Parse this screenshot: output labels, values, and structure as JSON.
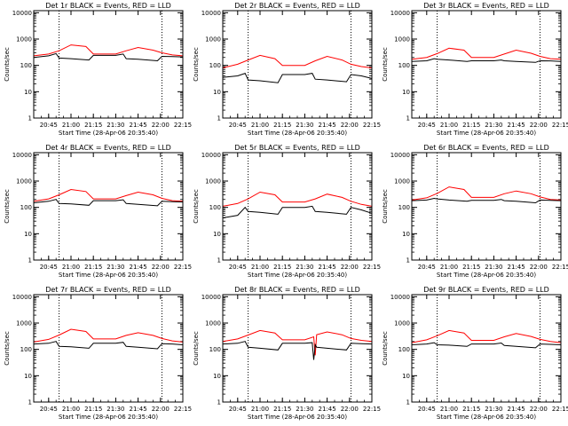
{
  "figure": {
    "colors": {
      "events": "#000000",
      "lld": "#ff0000",
      "axes": "#000000",
      "background": "#ffffff"
    },
    "panels_layout": "3x3 grid"
  },
  "chart_data": [
    {
      "type": "line",
      "title": "Det 1r BLACK = Events, RED = LLD",
      "ylabel": "Counts/sec",
      "xlabel": "Start Time (28-Apr-06 20:35:40)",
      "y_scale": "log",
      "ylim": [
        1,
        12000
      ],
      "xlim": [
        "20:35",
        "22:15"
      ],
      "x_ticks": [
        "20:45",
        "21:00",
        "21:15",
        "21:30",
        "21:45",
        "22:00",
        "22:15"
      ],
      "y_ticks": [
        "1",
        "10",
        "100",
        "1000",
        "10000"
      ],
      "dotted_verticals": [
        "20:52",
        "22:01"
      ],
      "series": [
        {
          "name": "RED = LLD",
          "color": "#ff0000",
          "x": [
            "20:35",
            "20:45",
            "20:52",
            "21:00",
            "21:10",
            "21:15",
            "21:30",
            "21:37",
            "21:45",
            "21:55",
            "22:01",
            "22:08",
            "22:15"
          ],
          "y": [
            230,
            270,
            360,
            600,
            520,
            270,
            270,
            360,
            480,
            380,
            300,
            250,
            230
          ]
        },
        {
          "name": "BLACK = Events",
          "color": "#000000",
          "x": [
            "20:35",
            "20:45",
            "20:50",
            "20:52",
            "21:00",
            "21:12",
            "21:15",
            "21:30",
            "21:35",
            "21:37",
            "21:45",
            "21:58",
            "22:01",
            "22:08",
            "22:15"
          ],
          "y": [
            200,
            230,
            280,
            190,
            180,
            160,
            240,
            240,
            270,
            180,
            170,
            150,
            220,
            215,
            210
          ]
        }
      ]
    },
    {
      "type": "line",
      "title": "Det 2r BLACK = Events, RED = LLD",
      "ylabel": "Counts/sec",
      "xlabel": "Start Time (28-Apr-06 20:35:40)",
      "y_scale": "log",
      "ylim": [
        1,
        12000
      ],
      "xlim": [
        "20:35",
        "22:15"
      ],
      "x_ticks": [
        "20:45",
        "21:00",
        "21:15",
        "21:30",
        "21:45",
        "22:00",
        "22:15"
      ],
      "y_ticks": [
        "1",
        "10",
        "100",
        "1000",
        "10000"
      ],
      "dotted_verticals": [
        "20:52",
        "22:01"
      ],
      "series": [
        {
          "name": "RED = LLD",
          "color": "#ff0000",
          "x": [
            "20:35",
            "20:45",
            "20:52",
            "21:00",
            "21:10",
            "21:15",
            "21:30",
            "21:37",
            "21:45",
            "21:55",
            "22:01",
            "22:08",
            "22:15"
          ],
          "y": [
            80,
            110,
            160,
            240,
            180,
            100,
            100,
            150,
            220,
            160,
            110,
            90,
            80
          ]
        },
        {
          "name": "BLACK = Events",
          "color": "#000000",
          "x": [
            "20:35",
            "20:45",
            "20:50",
            "20:52",
            "21:00",
            "21:12",
            "21:15",
            "21:30",
            "21:35",
            "21:37",
            "21:45",
            "21:58",
            "22:01",
            "22:08",
            "22:15"
          ],
          "y": [
            35,
            40,
            50,
            28,
            26,
            22,
            45,
            45,
            50,
            30,
            28,
            24,
            45,
            40,
            32
          ]
        }
      ]
    },
    {
      "type": "line",
      "title": "Det 3r BLACK = Events, RED = LLD",
      "ylabel": "Counts/sec",
      "xlabel": "Start Time (28-Apr-06 20:35:40)",
      "y_scale": "log",
      "ylim": [
        1,
        12000
      ],
      "xlim": [
        "20:35",
        "22:15"
      ],
      "x_ticks": [
        "20:45",
        "21:00",
        "21:15",
        "21:30",
        "21:45",
        "22:00",
        "22:15"
      ],
      "y_ticks": [
        "1",
        "10",
        "100",
        "1000",
        "10000"
      ],
      "dotted_verticals": [
        "20:52",
        "22:01"
      ],
      "series": [
        {
          "name": "RED = LLD",
          "color": "#ff0000",
          "x": [
            "20:35",
            "20:45",
            "20:52",
            "21:00",
            "21:10",
            "21:15",
            "21:30",
            "21:37",
            "21:45",
            "21:55",
            "22:01",
            "22:08",
            "22:15"
          ],
          "y": [
            170,
            200,
            280,
            450,
            380,
            200,
            200,
            270,
            380,
            290,
            220,
            180,
            170
          ]
        },
        {
          "name": "BLACK = Events",
          "color": "#000000",
          "x": [
            "20:35",
            "20:45",
            "20:50",
            "20:52",
            "21:00",
            "21:12",
            "21:15",
            "21:30",
            "21:35",
            "21:37",
            "21:45",
            "21:58",
            "22:01",
            "22:08",
            "22:15"
          ],
          "y": [
            140,
            150,
            180,
            170,
            160,
            140,
            150,
            150,
            160,
            150,
            140,
            130,
            150,
            148,
            140
          ]
        }
      ]
    },
    {
      "type": "line",
      "title": "Det 4r BLACK = Events, RED = LLD",
      "ylabel": "Counts/sec",
      "xlabel": "Start Time (28-Apr-06 20:35:40)",
      "y_scale": "log",
      "ylim": [
        1,
        12000
      ],
      "xlim": [
        "20:35",
        "22:15"
      ],
      "x_ticks": [
        "20:45",
        "21:00",
        "21:15",
        "21:30",
        "21:45",
        "22:00",
        "22:15"
      ],
      "y_ticks": [
        "1",
        "10",
        "100",
        "1000",
        "10000"
      ],
      "dotted_verticals": [
        "20:52",
        "22:01"
      ],
      "series": [
        {
          "name": "RED = LLD",
          "color": "#ff0000",
          "x": [
            "20:35",
            "20:45",
            "20:52",
            "21:00",
            "21:10",
            "21:15",
            "21:30",
            "21:37",
            "21:45",
            "21:55",
            "22:01",
            "22:08",
            "22:15"
          ],
          "y": [
            170,
            210,
            300,
            480,
            400,
            210,
            210,
            280,
            380,
            300,
            220,
            180,
            170
          ]
        },
        {
          "name": "BLACK = Events",
          "color": "#000000",
          "x": [
            "20:35",
            "20:45",
            "20:50",
            "20:52",
            "21:00",
            "21:12",
            "21:15",
            "21:30",
            "21:35",
            "21:37",
            "21:45",
            "21:58",
            "22:01",
            "22:08",
            "22:15"
          ],
          "y": [
            150,
            170,
            200,
            140,
            135,
            120,
            180,
            180,
            195,
            140,
            130,
            115,
            170,
            165,
            160
          ]
        }
      ]
    },
    {
      "type": "line",
      "title": "Det 5r BLACK = Events, RED = LLD",
      "ylabel": "Counts/sec",
      "xlabel": "Start Time (28-Apr-06 20:35:40)",
      "y_scale": "log",
      "ylim": [
        1,
        12000
      ],
      "xlim": [
        "20:35",
        "22:15"
      ],
      "x_ticks": [
        "20:45",
        "21:00",
        "21:15",
        "21:30",
        "21:45",
        "22:00",
        "22:15"
      ],
      "y_ticks": [
        "1",
        "10",
        "100",
        "1000",
        "10000"
      ],
      "dotted_verticals": [
        "20:52",
        "22:01"
      ],
      "series": [
        {
          "name": "RED = LLD",
          "color": "#ff0000",
          "x": [
            "20:35",
            "20:45",
            "20:52",
            "21:00",
            "21:10",
            "21:15",
            "21:30",
            "21:37",
            "21:45",
            "21:55",
            "22:01",
            "22:08",
            "22:15"
          ],
          "y": [
            110,
            140,
            210,
            380,
            300,
            160,
            160,
            210,
            320,
            240,
            170,
            130,
            110
          ]
        },
        {
          "name": "BLACK = Events",
          "color": "#000000",
          "x": [
            "20:35",
            "20:45",
            "20:50",
            "20:52",
            "21:00",
            "21:12",
            "21:15",
            "21:30",
            "21:35",
            "21:37",
            "21:45",
            "21:58",
            "22:01",
            "22:08",
            "22:15"
          ],
          "y": [
            40,
            50,
            100,
            70,
            65,
            55,
            100,
            100,
            110,
            70,
            65,
            55,
            100,
            80,
            60
          ]
        }
      ]
    },
    {
      "type": "line",
      "title": "Det 6r BLACK = Events, RED = LLD",
      "ylabel": "Counts/sec",
      "xlabel": "Start Time (28-Apr-06 20:35:40)",
      "y_scale": "log",
      "ylim": [
        1,
        12000
      ],
      "xlim": [
        "20:35",
        "22:15"
      ],
      "x_ticks": [
        "20:45",
        "21:00",
        "21:15",
        "21:30",
        "21:45",
        "22:00",
        "22:15"
      ],
      "y_ticks": [
        "1",
        "10",
        "100",
        "1000",
        "10000"
      ],
      "dotted_verticals": [
        "20:52",
        "22:01"
      ],
      "series": [
        {
          "name": "RED = LLD",
          "color": "#ff0000",
          "x": [
            "20:35",
            "20:45",
            "20:52",
            "21:00",
            "21:10",
            "21:15",
            "21:30",
            "21:37",
            "21:45",
            "21:55",
            "22:01",
            "22:08",
            "22:15"
          ],
          "y": [
            190,
            230,
            340,
            600,
            480,
            240,
            240,
            330,
            420,
            330,
            250,
            200,
            190
          ]
        },
        {
          "name": "BLACK = Events",
          "color": "#000000",
          "x": [
            "20:35",
            "20:45",
            "20:50",
            "20:52",
            "21:00",
            "21:12",
            "21:15",
            "21:30",
            "21:35",
            "21:37",
            "21:45",
            "21:58",
            "22:01",
            "22:08",
            "22:15"
          ],
          "y": [
            180,
            190,
            220,
            210,
            190,
            170,
            185,
            185,
            200,
            180,
            170,
            150,
            190,
            185,
            180
          ]
        }
      ]
    },
    {
      "type": "line",
      "title": "Det 7r BLACK = Events, RED = LLD",
      "ylabel": "Counts/sec",
      "xlabel": "Start Time (28-Apr-06 20:35:40)",
      "y_scale": "log",
      "ylim": [
        1,
        12000
      ],
      "xlim": [
        "20:35",
        "22:15"
      ],
      "x_ticks": [
        "20:45",
        "21:00",
        "21:15",
        "21:30",
        "21:45",
        "22:00",
        "22:15"
      ],
      "y_ticks": [
        "1",
        "10",
        "100",
        "1000",
        "10000"
      ],
      "dotted_verticals": [
        "20:52",
        "22:01"
      ],
      "series": [
        {
          "name": "RED = LLD",
          "color": "#ff0000",
          "x": [
            "20:35",
            "20:45",
            "20:52",
            "21:00",
            "21:10",
            "21:15",
            "21:30",
            "21:37",
            "21:45",
            "21:55",
            "22:01",
            "22:08",
            "22:15"
          ],
          "y": [
            190,
            240,
            350,
            580,
            480,
            250,
            250,
            340,
            430,
            340,
            260,
            210,
            190
          ]
        },
        {
          "name": "BLACK = Events",
          "color": "#000000",
          "x": [
            "20:35",
            "20:45",
            "20:50",
            "20:52",
            "21:00",
            "21:12",
            "21:15",
            "21:30",
            "21:35",
            "21:37",
            "21:45",
            "21:58",
            "22:01",
            "22:08",
            "22:15"
          ],
          "y": [
            160,
            170,
            200,
            130,
            125,
            110,
            170,
            170,
            185,
            130,
            120,
            105,
            165,
            160,
            150
          ]
        }
      ]
    },
    {
      "type": "line",
      "title": "Det 8r BLACK = Events, RED = LLD",
      "ylabel": "Counts/sec",
      "xlabel": "Start Time (28-Apr-06 20:35:40)",
      "y_scale": "log",
      "ylim": [
        1,
        12000
      ],
      "xlim": [
        "20:35",
        "22:15"
      ],
      "x_ticks": [
        "20:45",
        "21:00",
        "21:15",
        "21:30",
        "21:45",
        "22:00",
        "22:15"
      ],
      "y_ticks": [
        "1",
        "10",
        "100",
        "1000",
        "10000"
      ],
      "dotted_verticals": [
        "20:52",
        "22:01"
      ],
      "series": [
        {
          "name": "RED = LLD",
          "color": "#ff0000",
          "x": [
            "20:35",
            "20:45",
            "20:52",
            "21:00",
            "21:10",
            "21:15",
            "21:30",
            "21:36",
            "21:37",
            "21:38",
            "21:45",
            "21:55",
            "22:01",
            "22:08",
            "22:15"
          ],
          "y": [
            200,
            250,
            350,
            520,
            420,
            230,
            230,
            300,
            60,
            360,
            460,
            360,
            260,
            220,
            200
          ]
        },
        {
          "name": "BLACK = Events",
          "color": "#000000",
          "x": [
            "20:35",
            "20:45",
            "20:50",
            "20:52",
            "21:00",
            "21:12",
            "21:15",
            "21:30",
            "21:35",
            "21:36",
            "21:37",
            "21:38",
            "21:45",
            "21:58",
            "22:01",
            "22:08",
            "22:15"
          ],
          "y": [
            160,
            170,
            200,
            120,
            110,
            95,
            170,
            170,
            180,
            40,
            150,
            120,
            110,
            95,
            170,
            165,
            160
          ]
        }
      ]
    },
    {
      "type": "line",
      "title": "Det 9r BLACK = Events, RED = LLD",
      "ylabel": "Counts/sec",
      "xlabel": "Start Time (28-Apr-06 20:35:40)",
      "y_scale": "log",
      "ylim": [
        1,
        12000
      ],
      "xlim": [
        "20:35",
        "22:15"
      ],
      "x_ticks": [
        "20:45",
        "21:00",
        "21:15",
        "21:30",
        "21:45",
        "22:00",
        "22:15"
      ],
      "y_ticks": [
        "1",
        "10",
        "100",
        "1000",
        "10000"
      ],
      "dotted_verticals": [
        "20:52",
        "22:01"
      ],
      "series": [
        {
          "name": "RED = LLD",
          "color": "#ff0000",
          "x": [
            "20:35",
            "20:45",
            "20:52",
            "21:00",
            "21:10",
            "21:15",
            "21:30",
            "21:37",
            "21:45",
            "21:55",
            "22:01",
            "22:08",
            "22:15"
          ],
          "y": [
            180,
            230,
            330,
            520,
            420,
            220,
            220,
            300,
            400,
            310,
            240,
            200,
            180
          ]
        },
        {
          "name": "BLACK = Events",
          "color": "#000000",
          "x": [
            "20:35",
            "20:45",
            "20:50",
            "20:52",
            "21:00",
            "21:12",
            "21:15",
            "21:30",
            "21:35",
            "21:37",
            "21:45",
            "21:58",
            "22:01",
            "22:08",
            "22:15"
          ],
          "y": [
            150,
            160,
            180,
            150,
            145,
            130,
            160,
            160,
            175,
            140,
            130,
            115,
            160,
            155,
            150
          ]
        }
      ]
    }
  ]
}
